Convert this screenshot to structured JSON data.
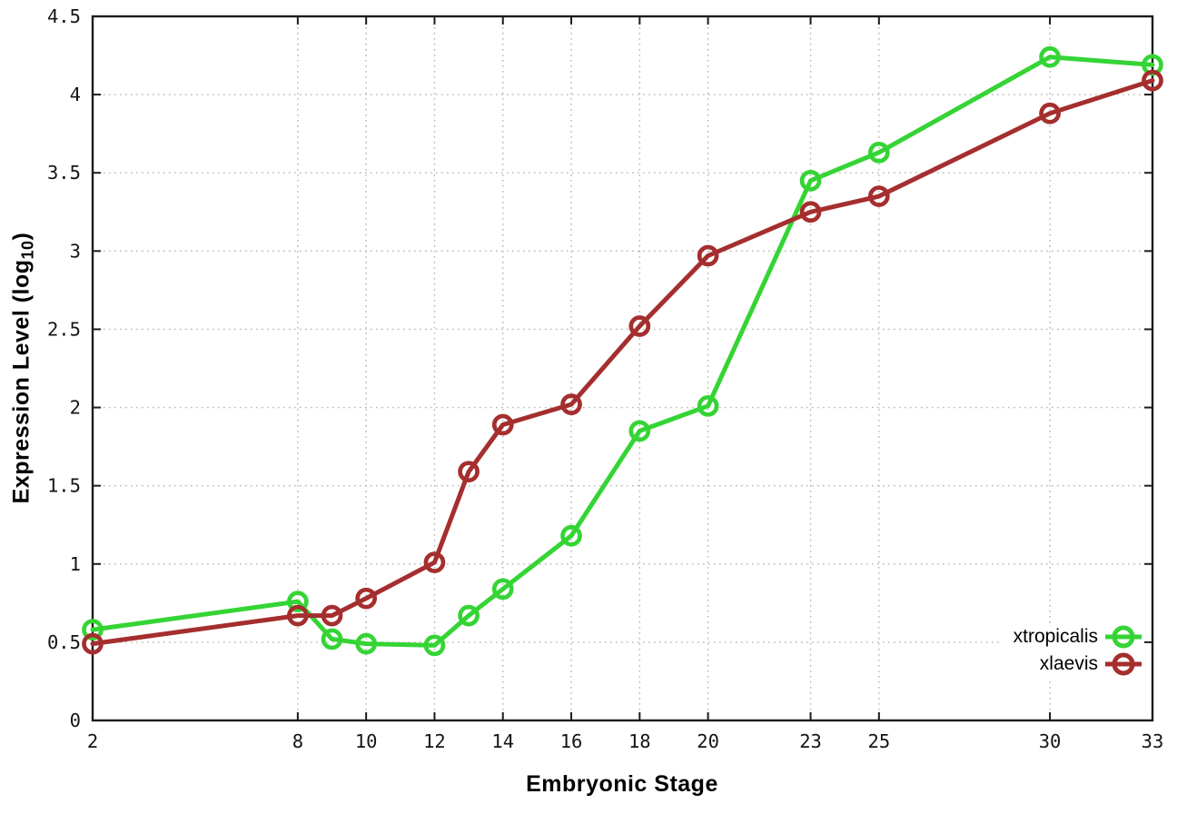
{
  "chart_data": {
    "type": "line",
    "title": "",
    "xlabel": "Embryonic Stage",
    "ylabel": {
      "main": "Expression Level (log",
      "sub": "10",
      "end": ")"
    },
    "xlim": [
      2,
      33
    ],
    "ylim": [
      0,
      4.5
    ],
    "grid": true,
    "legend_position": "bottom-right",
    "x_ticks": [
      2,
      8,
      10,
      12,
      14,
      16,
      18,
      20,
      23,
      25,
      30,
      33
    ],
    "y_ticks": [
      0,
      0.5,
      1,
      1.5,
      2,
      2.5,
      3,
      3.5,
      4,
      4.5
    ],
    "y_tick_labels": [
      "0",
      "0.5",
      "1",
      "1.5",
      "2",
      "2.5",
      "3",
      "3.5",
      "4",
      "4.5"
    ],
    "x": [
      2,
      8,
      9,
      10,
      12,
      13,
      14,
      16,
      18,
      20,
      23,
      25,
      30,
      33
    ],
    "series": [
      {
        "name": "xtropicalis",
        "color": "#35d435",
        "values": [
          0.58,
          0.76,
          0.52,
          0.49,
          0.48,
          0.67,
          0.84,
          1.18,
          1.85,
          2.01,
          3.45,
          3.63,
          4.24,
          4.19
        ]
      },
      {
        "name": "xlaevis",
        "color": "#a52e2e",
        "values": [
          0.49,
          0.67,
          0.67,
          0.78,
          1.01,
          1.59,
          1.89,
          2.02,
          2.52,
          2.97,
          3.25,
          3.35,
          3.88,
          4.09
        ]
      }
    ]
  }
}
